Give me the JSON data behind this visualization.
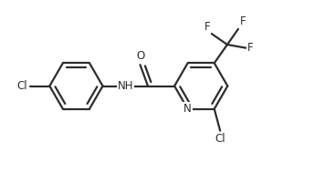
{
  "bg_color": "#ffffff",
  "bond_color": "#2d2d2d",
  "atom_color": "#2d2d2d",
  "bond_width": 1.6,
  "font_size": 8.5,
  "figsize": [
    3.56,
    1.89
  ],
  "dpi": 100,
  "xlim": [
    0,
    10.5
  ],
  "ylim": [
    -1.2,
    5.2
  ]
}
